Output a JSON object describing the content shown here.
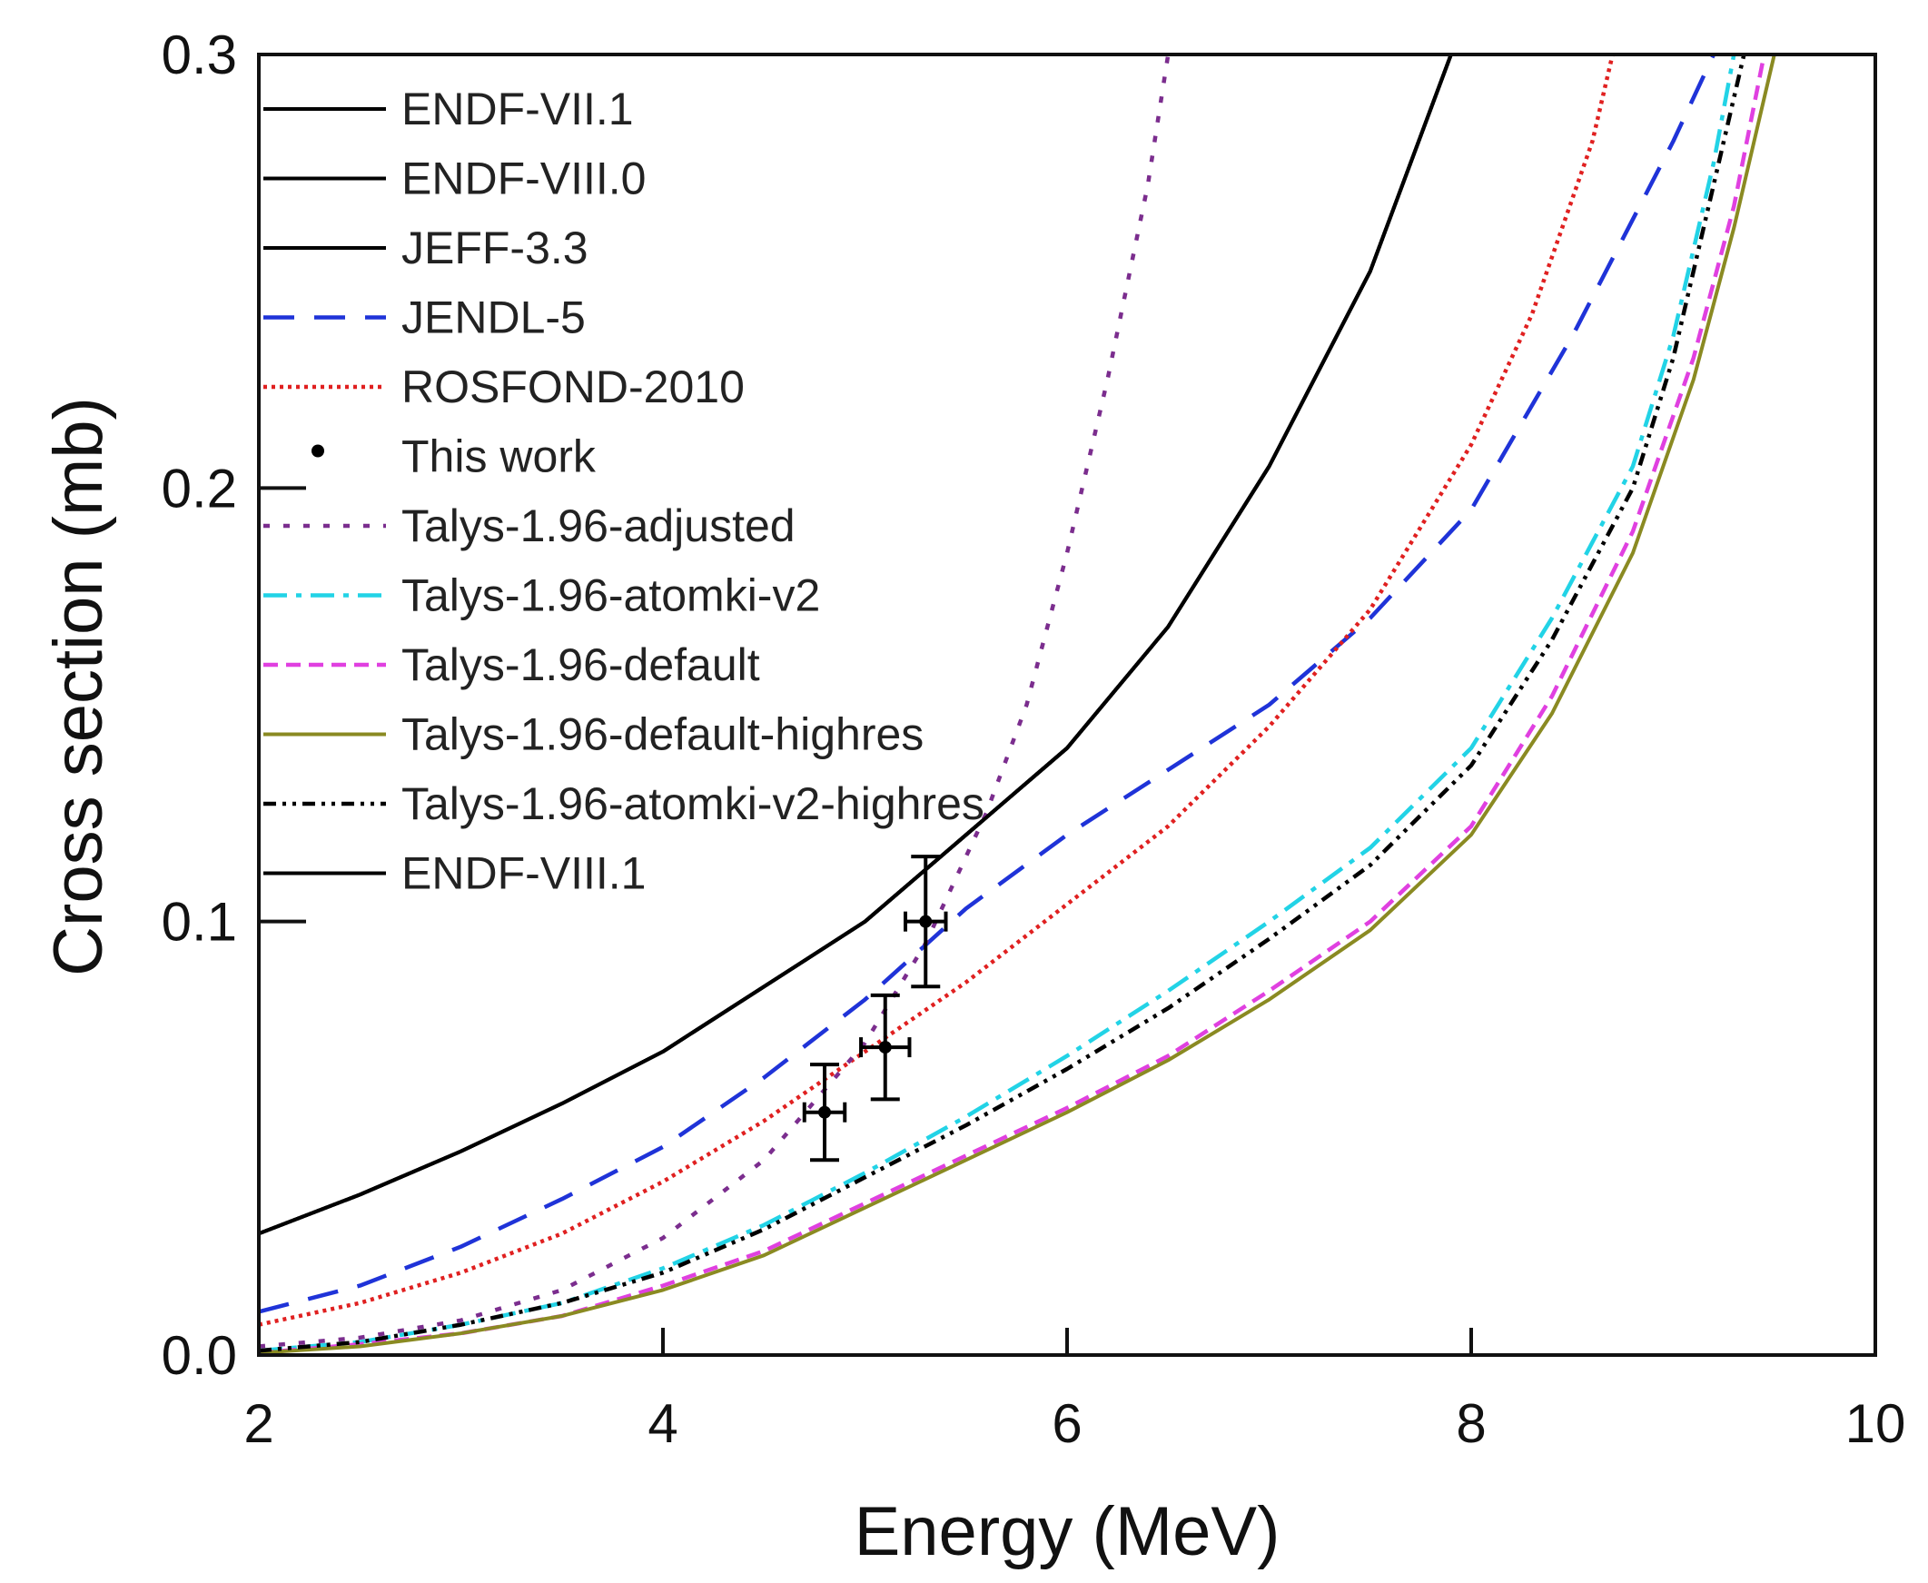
{
  "chart_data": {
    "type": "line",
    "xlabel": "Energy (MeV)",
    "ylabel": "Cross section (mb)",
    "xlim": [
      2,
      10
    ],
    "ylim": [
      0,
      0.3
    ],
    "xticks": [
      2,
      4,
      6,
      8,
      10
    ],
    "xtick_labels": [
      "2",
      "4",
      "6",
      "8",
      "10"
    ],
    "yticks": [
      0,
      0.1,
      0.2,
      0.3
    ],
    "ytick_labels": [
      "0.0",
      "0.1",
      "0.2",
      "0.3"
    ],
    "grid": false,
    "legend_position": "top-left",
    "series": [
      {
        "name": "ENDF-VII.1",
        "color": "#000000",
        "dash": "solid",
        "x": [
          2,
          2.5,
          3,
          3.5,
          4,
          4.5,
          5,
          5.5,
          6,
          6.5,
          7,
          7.5,
          7.9
        ],
        "y": [
          0.028,
          0.037,
          0.047,
          0.058,
          0.07,
          0.085,
          0.1,
          0.12,
          0.14,
          0.168,
          0.205,
          0.25,
          0.3
        ]
      },
      {
        "name": "ENDF-VIII.0",
        "color": "#000000",
        "dash": "solid",
        "x": [
          2,
          2.5,
          3,
          3.5,
          4,
          4.5,
          5,
          5.5,
          6,
          6.5,
          7,
          7.5,
          7.9
        ],
        "y": [
          0.028,
          0.037,
          0.047,
          0.058,
          0.07,
          0.085,
          0.1,
          0.12,
          0.14,
          0.168,
          0.205,
          0.25,
          0.3
        ]
      },
      {
        "name": "JEFF-3.3",
        "color": "#000000",
        "dash": "solid",
        "x": [
          2,
          2.5,
          3,
          3.5,
          4,
          4.5,
          5,
          5.5,
          6,
          6.5,
          7,
          7.5,
          7.9
        ],
        "y": [
          0.028,
          0.037,
          0.047,
          0.058,
          0.07,
          0.085,
          0.1,
          0.12,
          0.14,
          0.168,
          0.205,
          0.25,
          0.3
        ]
      },
      {
        "name": "JENDL-5",
        "color": "#1f33d8",
        "dash": "long-dash",
        "x": [
          2,
          2.5,
          3,
          3.5,
          4,
          4.5,
          5,
          5.5,
          6,
          6.5,
          7,
          7.5,
          8,
          8.5,
          9,
          9.2
        ],
        "y": [
          0.01,
          0.016,
          0.025,
          0.036,
          0.048,
          0.064,
          0.082,
          0.103,
          0.12,
          0.135,
          0.15,
          0.17,
          0.195,
          0.235,
          0.28,
          0.3
        ]
      },
      {
        "name": "ROSFOND-2010",
        "color": "#e02020",
        "dash": "dotted",
        "x": [
          2,
          2.5,
          3,
          3.5,
          4,
          4.5,
          5,
          5.5,
          6,
          6.5,
          7,
          7.5,
          8,
          8.3,
          8.6,
          8.7
        ],
        "y": [
          0.007,
          0.012,
          0.019,
          0.028,
          0.04,
          0.054,
          0.07,
          0.086,
          0.104,
          0.122,
          0.145,
          0.172,
          0.21,
          0.24,
          0.28,
          0.3
        ]
      },
      {
        "name": "This work",
        "color": "#000000",
        "dash": "none",
        "x": [
          4.8,
          5.1,
          5.3
        ],
        "y": [
          0.056,
          0.071,
          0.1
        ],
        "xerr": [
          0.1,
          0.12,
          0.1
        ],
        "yerr": [
          0.011,
          0.012,
          0.015
        ]
      },
      {
        "name": "Talys-1.96-adjusted",
        "color": "#7b2d8e",
        "dash": "dotted-coarse",
        "x": [
          2,
          2.5,
          3,
          3.5,
          4,
          4.5,
          5,
          5.3,
          5.6,
          5.8,
          6,
          6.2,
          6.4,
          6.5
        ],
        "y": [
          0.002,
          0.004,
          0.008,
          0.015,
          0.027,
          0.045,
          0.072,
          0.095,
          0.125,
          0.15,
          0.185,
          0.225,
          0.27,
          0.3
        ]
      },
      {
        "name": "Talys-1.96-atomki-v2",
        "color": "#22d3e6",
        "dash": "dash-dot",
        "x": [
          2,
          2.5,
          3,
          3.5,
          4,
          4.5,
          5,
          5.5,
          6,
          6.5,
          7,
          7.5,
          8,
          8.4,
          8.8,
          9,
          9.2,
          9.3
        ],
        "y": [
          0.001,
          0.003,
          0.007,
          0.012,
          0.02,
          0.03,
          0.042,
          0.055,
          0.069,
          0.084,
          0.1,
          0.117,
          0.14,
          0.17,
          0.205,
          0.235,
          0.275,
          0.3
        ]
      },
      {
        "name": "Talys-1.96-default",
        "color": "#e040e0",
        "dash": "short-dash",
        "x": [
          2,
          2.5,
          3,
          3.5,
          4,
          4.5,
          5,
          5.5,
          6,
          6.5,
          7,
          7.5,
          8,
          8.4,
          8.8,
          9.1,
          9.3,
          9.45
        ],
        "y": [
          0.0005,
          0.0025,
          0.005,
          0.009,
          0.016,
          0.024,
          0.035,
          0.046,
          0.057,
          0.069,
          0.084,
          0.1,
          0.122,
          0.152,
          0.19,
          0.23,
          0.265,
          0.3
        ]
      },
      {
        "name": "Talys-1.96-default-highres",
        "color": "#8a8a22",
        "dash": "solid",
        "x": [
          2,
          2.5,
          3,
          3.5,
          4,
          4.5,
          5,
          5.5,
          6,
          6.5,
          7,
          7.5,
          8,
          8.4,
          8.8,
          9.1,
          9.3,
          9.5
        ],
        "y": [
          0.0005,
          0.002,
          0.005,
          0.009,
          0.015,
          0.023,
          0.034,
          0.045,
          0.056,
          0.068,
          0.082,
          0.098,
          0.12,
          0.148,
          0.185,
          0.225,
          0.26,
          0.3
        ]
      },
      {
        "name": "Talys-1.96-atomki-v2-highres",
        "color": "#000000",
        "dash": "dash-dot-dot",
        "x": [
          2,
          2.5,
          3,
          3.5,
          4,
          4.5,
          5,
          5.5,
          6,
          6.5,
          7,
          7.5,
          8,
          8.4,
          8.8,
          9,
          9.2,
          9.35
        ],
        "y": [
          0.001,
          0.003,
          0.007,
          0.012,
          0.019,
          0.029,
          0.041,
          0.053,
          0.066,
          0.08,
          0.096,
          0.113,
          0.136,
          0.165,
          0.2,
          0.23,
          0.27,
          0.3
        ]
      },
      {
        "name": "ENDF-VIII.1",
        "color": "#000000",
        "dash": "solid",
        "x": [
          2,
          2.5,
          3,
          3.5,
          4,
          4.5,
          5,
          5.5,
          6,
          6.5,
          7,
          7.5,
          7.9
        ],
        "y": [
          0.028,
          0.037,
          0.047,
          0.058,
          0.07,
          0.085,
          0.1,
          0.12,
          0.14,
          0.168,
          0.205,
          0.25,
          0.3
        ]
      }
    ]
  }
}
